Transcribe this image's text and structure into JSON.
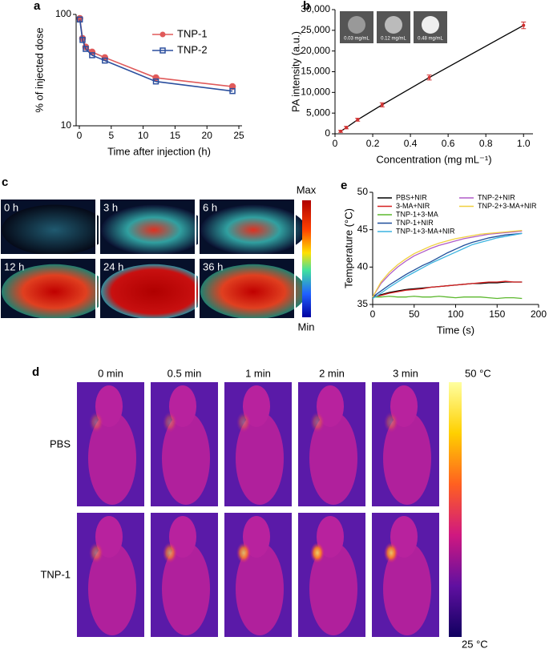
{
  "chart_data": [
    {
      "type": "line",
      "panel": "a",
      "x_label": "Time after injection (h)",
      "y_label": "% of injected dose",
      "x": [
        0.083,
        0.5,
        1,
        2,
        4,
        12,
        24
      ],
      "series": [
        {
          "name": "TNP-1",
          "color": "#e05a5a",
          "marker": "circle",
          "values": [
            92,
            61,
            51,
            46,
            41,
            27,
            22.5
          ]
        },
        {
          "name": "TNP-2",
          "color": "#2b4f9e",
          "marker": "square",
          "values": [
            90,
            59,
            49,
            43,
            38.5,
            25,
            20.5
          ]
        }
      ],
      "xlim": [
        -0.5,
        25.5
      ],
      "ylim": [
        10,
        100
      ],
      "log_y": true,
      "xticks": [
        0,
        5,
        10,
        15,
        20,
        25
      ],
      "yticks": [
        10,
        100
      ],
      "legend": "upper right"
    },
    {
      "type": "line",
      "panel": "b",
      "x_label": "Concentration (mg mL⁻¹)",
      "y_label": "PA intensity (a.u.)",
      "x": [
        0.03,
        0.06,
        0.12,
        0.25,
        0.5,
        1.0
      ],
      "values": [
        600,
        1500,
        3400,
        7000,
        13600,
        26200
      ],
      "errors": [
        250,
        300,
        350,
        500,
        600,
        800
      ],
      "color": "#d03030",
      "line_color": "#000000",
      "insets": [
        "0.03 mg/mL",
        "0.12 mg/mL",
        "0.48 mg/mL"
      ],
      "xlim": [
        0,
        1.05
      ],
      "ylim": [
        0,
        30000
      ],
      "xticks": [
        0,
        0.2,
        0.4,
        0.6,
        0.8,
        {
          "value": 1,
          "label": "1.0"
        }
      ],
      "yticks": [
        0,
        {
          "value": 5000,
          "label": "5,000"
        },
        {
          "value": 10000,
          "label": "10,000"
        },
        {
          "value": 15000,
          "label": "15,000"
        },
        {
          "value": 20000,
          "label": "20,000"
        },
        {
          "value": 25000,
          "label": "25,000"
        },
        {
          "value": 30000,
          "label": "30,000"
        }
      ]
    },
    {
      "type": "line",
      "panel": "e",
      "x_label": "Time (s)",
      "y_label": "Temperature (°C)",
      "x": [
        0,
        10,
        20,
        30,
        40,
        50,
        60,
        70,
        80,
        90,
        100,
        110,
        120,
        130,
        140,
        150,
        160,
        170,
        180
      ],
      "series": [
        {
          "name": "PBS+NIR",
          "color": "#000000",
          "values": [
            36,
            36.3,
            36.6,
            36.8,
            37,
            37.1,
            37.2,
            37.3,
            37.4,
            37.5,
            37.6,
            37.7,
            37.8,
            37.8,
            37.9,
            37.9,
            38,
            38,
            38
          ]
        },
        {
          "name": "3-MA+NIR",
          "color": "#d62020",
          "values": [
            36,
            36.2,
            36.5,
            36.7,
            36.9,
            37,
            37.1,
            37.3,
            37.4,
            37.5,
            37.6,
            37.7,
            37.8,
            37.9,
            38,
            38,
            38.1,
            38,
            38
          ]
        },
        {
          "name": "TNP-1+3-MA",
          "color": "#5cb82e",
          "values": [
            36,
            36,
            36.1,
            36,
            36,
            36.1,
            36,
            36,
            36.1,
            36,
            35.9,
            36,
            36,
            36,
            35.9,
            35.8,
            35.9,
            35.9,
            35.8
          ]
        },
        {
          "name": "TNP-1+NIR",
          "color": "#1f4e9a",
          "values": [
            36,
            36.8,
            37.6,
            38.3,
            39,
            39.6,
            40.2,
            40.7,
            41.3,
            41.9,
            42.4,
            42.9,
            43.3,
            43.6,
            43.9,
            44.1,
            44.3,
            44.4,
            44.5
          ]
        },
        {
          "name": "TNP-1+3-MA+NIR",
          "color": "#3cb4e0",
          "values": [
            35.8,
            36.5,
            37.3,
            38,
            38.7,
            39.3,
            39.9,
            40.5,
            41,
            41.5,
            42,
            42.5,
            43,
            43.3,
            43.6,
            43.9,
            44.1,
            44.3,
            44.5
          ]
        },
        {
          "name": "TNP-2+NIR",
          "color": "#b05cc8",
          "values": [
            36,
            37.8,
            39,
            40,
            40.8,
            41.5,
            42,
            42.5,
            42.9,
            43.2,
            43.5,
            43.8,
            44,
            44.2,
            44.4,
            44.5,
            44.6,
            44.7,
            44.8
          ]
        },
        {
          "name": "TNP-2+3-MA+NIR",
          "color": "#f0d040",
          "values": [
            36,
            38,
            39.3,
            40.3,
            41.1,
            41.8,
            42.3,
            42.8,
            43.2,
            43.5,
            43.8,
            44,
            44.2,
            44.4,
            44.5,
            44.6,
            44.7,
            44.8,
            44.9
          ]
        }
      ],
      "xlim": [
        0,
        200
      ],
      "ylim": [
        35,
        50
      ],
      "xticks": [
        0,
        50,
        100,
        150,
        200
      ],
      "yticks": [
        35,
        40,
        45,
        50
      ],
      "legend": "upper left"
    }
  ],
  "panel_c": {
    "panel": "c",
    "labels": [
      "0 h",
      "3 h",
      "6 h",
      "12 h",
      "24 h",
      "36 h"
    ],
    "colorbar": [
      "Max",
      "Min"
    ]
  },
  "panel_d": {
    "panel": "d",
    "columns": [
      "0 min",
      "0.5 min",
      "1 min",
      "2 min",
      "3 min"
    ],
    "rows": [
      "PBS",
      "TNP-1"
    ],
    "colorbar": [
      "50 °C",
      "25 °C"
    ]
  }
}
